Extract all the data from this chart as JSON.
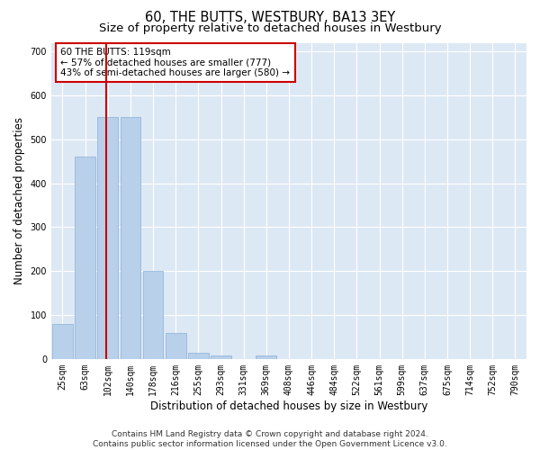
{
  "title": "60, THE BUTTS, WESTBURY, BA13 3EY",
  "subtitle": "Size of property relative to detached houses in Westbury",
  "xlabel": "Distribution of detached houses by size in Westbury",
  "ylabel": "Number of detached properties",
  "categories": [
    "25sqm",
    "63sqm",
    "102sqm",
    "140sqm",
    "178sqm",
    "216sqm",
    "255sqm",
    "293sqm",
    "331sqm",
    "369sqm",
    "408sqm",
    "446sqm",
    "484sqm",
    "522sqm",
    "561sqm",
    "599sqm",
    "637sqm",
    "675sqm",
    "714sqm",
    "752sqm",
    "790sqm"
  ],
  "values": [
    80,
    460,
    550,
    550,
    200,
    60,
    15,
    8,
    0,
    8,
    0,
    0,
    0,
    0,
    0,
    0,
    0,
    0,
    0,
    0,
    0
  ],
  "bar_color": "#b8d0ea",
  "bar_edge_color": "#8ab0d8",
  "vline_color": "#cc0000",
  "annotation_text": "60 THE BUTTS: 119sqm\n← 57% of detached houses are smaller (777)\n43% of semi-detached houses are larger (580) →",
  "annotation_box_color": "#ffffff",
  "annotation_box_edge": "#cc0000",
  "ylim": [
    0,
    720
  ],
  "yticks": [
    0,
    100,
    200,
    300,
    400,
    500,
    600,
    700
  ],
  "footnote": "Contains HM Land Registry data © Crown copyright and database right 2024.\nContains public sector information licensed under the Open Government Licence v3.0.",
  "bg_color": "#dde8f5",
  "title_fontsize": 10.5,
  "subtitle_fontsize": 9.5,
  "axis_label_fontsize": 8.5,
  "tick_fontsize": 7,
  "footnote_fontsize": 6.5,
  "annotation_fontsize": 7.5
}
